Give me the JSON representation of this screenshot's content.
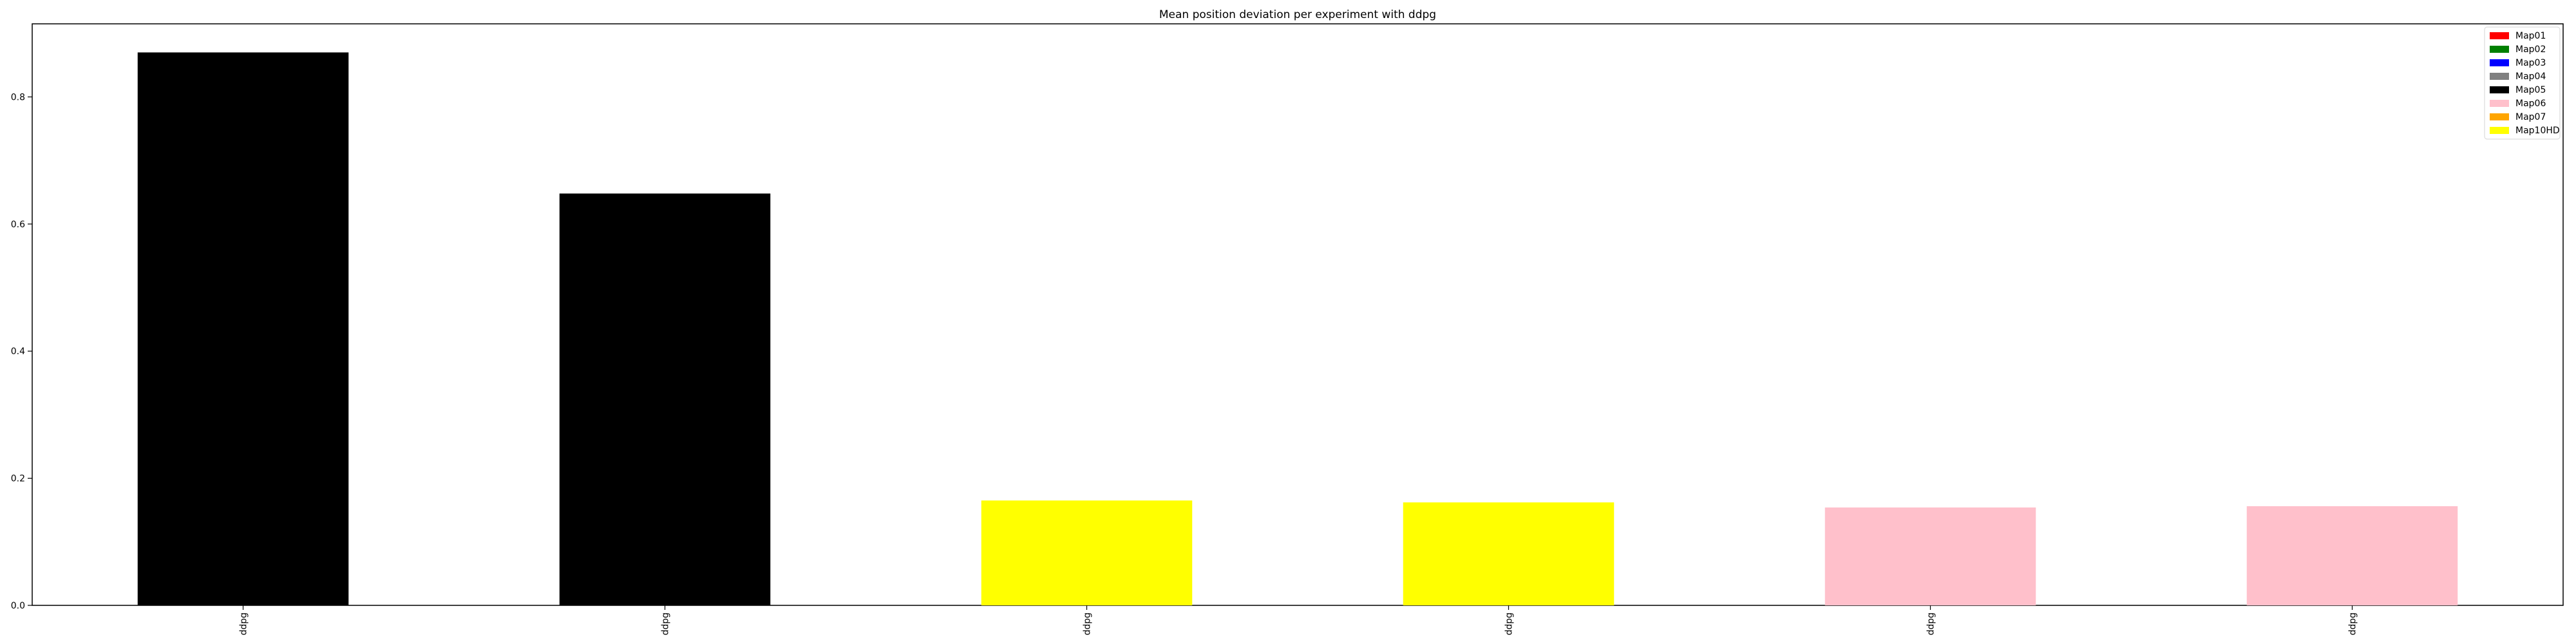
{
  "chart_data": {
    "type": "bar",
    "title": "Mean position deviation per experiment with ddpg",
    "xlabel": "",
    "ylabel": "",
    "categories": [
      "ddpg",
      "ddpg",
      "ddpg",
      "ddpg",
      "ddpg",
      "ddpg"
    ],
    "values": [
      0.87,
      0.648,
      0.165,
      0.162,
      0.154,
      0.156
    ],
    "bar_series": [
      "Map05",
      "Map05",
      "Map10HD",
      "Map10HD",
      "Map06",
      "Map06"
    ],
    "ylim": [
      0,
      0.915
    ],
    "yticks": [
      0.0,
      0.2,
      0.4,
      0.6,
      0.8
    ],
    "ytick_labels": [
      "0.0",
      "0.2",
      "0.4",
      "0.6",
      "0.8"
    ],
    "grid": false,
    "legend_position": "top-right",
    "legend": [
      {
        "name": "Map01",
        "color": "#ff0000"
      },
      {
        "name": "Map02",
        "color": "#008000"
      },
      {
        "name": "Map03",
        "color": "#0000ff"
      },
      {
        "name": "Map04",
        "color": "#808080"
      },
      {
        "name": "Map05",
        "color": "#000000"
      },
      {
        "name": "Map06",
        "color": "#ffc0cb"
      },
      {
        "name": "Map07",
        "color": "#ffa500"
      },
      {
        "name": "Map10HD",
        "color": "#ffff00"
      }
    ]
  }
}
